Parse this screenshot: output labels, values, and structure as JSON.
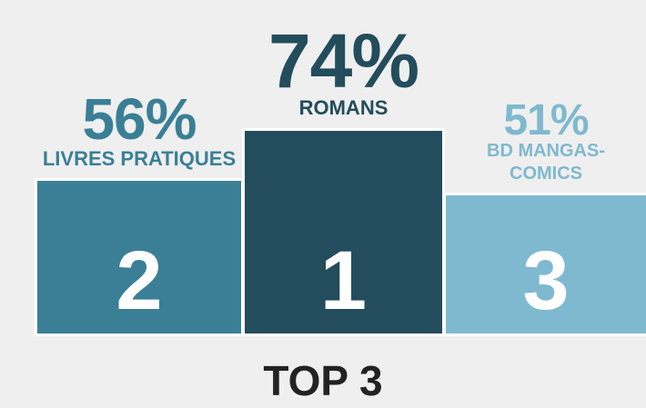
{
  "chart_data": {
    "type": "bar",
    "title": "TOP 3",
    "categories": [
      "LIVRES PRATIQUES",
      "ROMANS",
      "BD MANGAS-COMICS"
    ],
    "ranks": [
      "2",
      "1",
      "3"
    ],
    "values": [
      56,
      74,
      51
    ],
    "value_labels": [
      "56%",
      "74%",
      "51%"
    ],
    "colors": [
      "#3a7f96",
      "#234d5c",
      "#7fb9cf"
    ]
  }
}
